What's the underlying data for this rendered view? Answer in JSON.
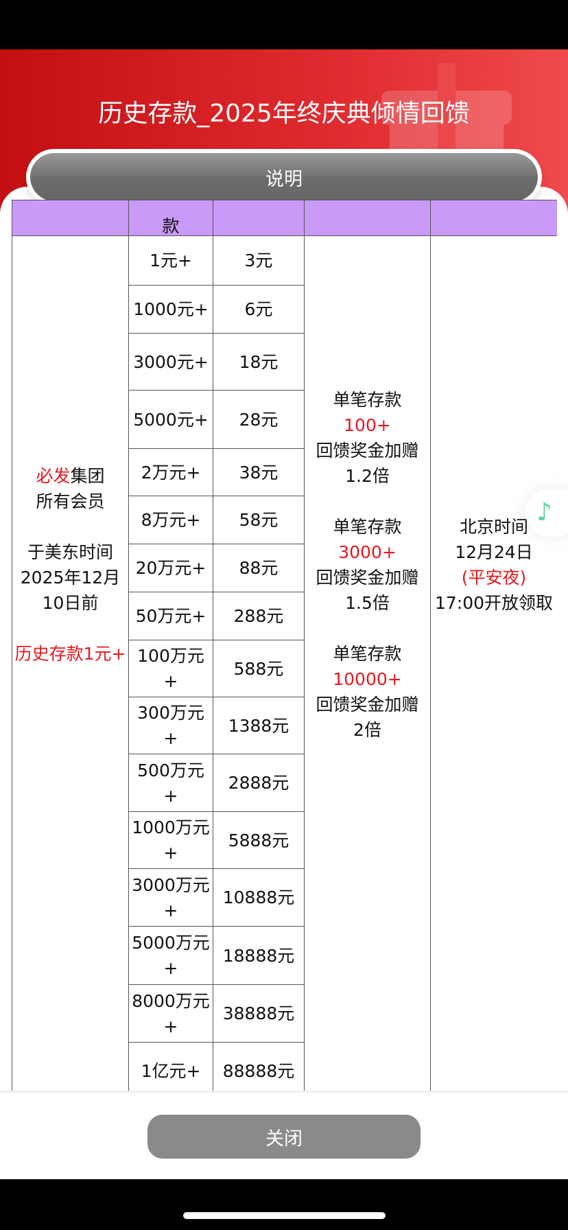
{
  "header": {
    "title": "历史存款_2025年终庆典倾情回馈",
    "explain_label": "说明"
  },
  "table": {
    "header_fragment": "款",
    "eligibility": {
      "line1_red": "必发",
      "line1_rest": "集团",
      "line2": "所有会员",
      "line3": "于美东时间",
      "line4": "2025年12月",
      "line5": "10日前",
      "line6_red": "历史存款1元+"
    },
    "tiers": [
      {
        "deposit": "1元+",
        "bonus": "3元"
      },
      {
        "deposit": "1000元+",
        "bonus": "6元"
      },
      {
        "deposit": "3000元+",
        "bonus": "18元"
      },
      {
        "deposit": "5000元+",
        "bonus": "28元"
      },
      {
        "deposit": "2万元+",
        "bonus": "38元"
      },
      {
        "deposit": "8万元+",
        "bonus": "58元"
      },
      {
        "deposit": "20万元+",
        "bonus": "88元"
      },
      {
        "deposit": "50万元+",
        "bonus": "288元"
      },
      {
        "deposit": "100万元+",
        "bonus": "588元"
      },
      {
        "deposit": "300万元+",
        "bonus": "1388元"
      },
      {
        "deposit": "500万元+",
        "bonus": "2888元"
      },
      {
        "deposit": "1000万元+",
        "bonus": "5888元"
      },
      {
        "deposit": "3000万元+",
        "bonus": "10888元"
      },
      {
        "deposit": "5000万元+",
        "bonus": "18888元"
      },
      {
        "deposit": "8000万元+",
        "bonus": "38888元"
      },
      {
        "deposit": "1亿元+",
        "bonus": "88888元"
      }
    ],
    "extra": [
      {
        "label": "单笔存款",
        "amount": "100+",
        "desc": "回馈奖金加赠",
        "mult": "1.2倍"
      },
      {
        "label": "单笔存款",
        "amount": "3000+",
        "desc": "回馈奖金加赠",
        "mult": "1.5倍"
      },
      {
        "label": "单笔存款",
        "amount": "10000+",
        "desc": "回馈奖金加赠",
        "mult": "2倍"
      }
    ],
    "claim": {
      "line1": "北京时间",
      "line2": "12月24日",
      "line3_red": "(平安夜)",
      "line4": "17:00开放领取"
    }
  },
  "footer": {
    "close_label": "关闭"
  },
  "music": {
    "icon": "music-note-icon",
    "color": "#5ad59a"
  },
  "colors": {
    "accent_red": "#e3191f",
    "header_purple": "#c99af7"
  }
}
